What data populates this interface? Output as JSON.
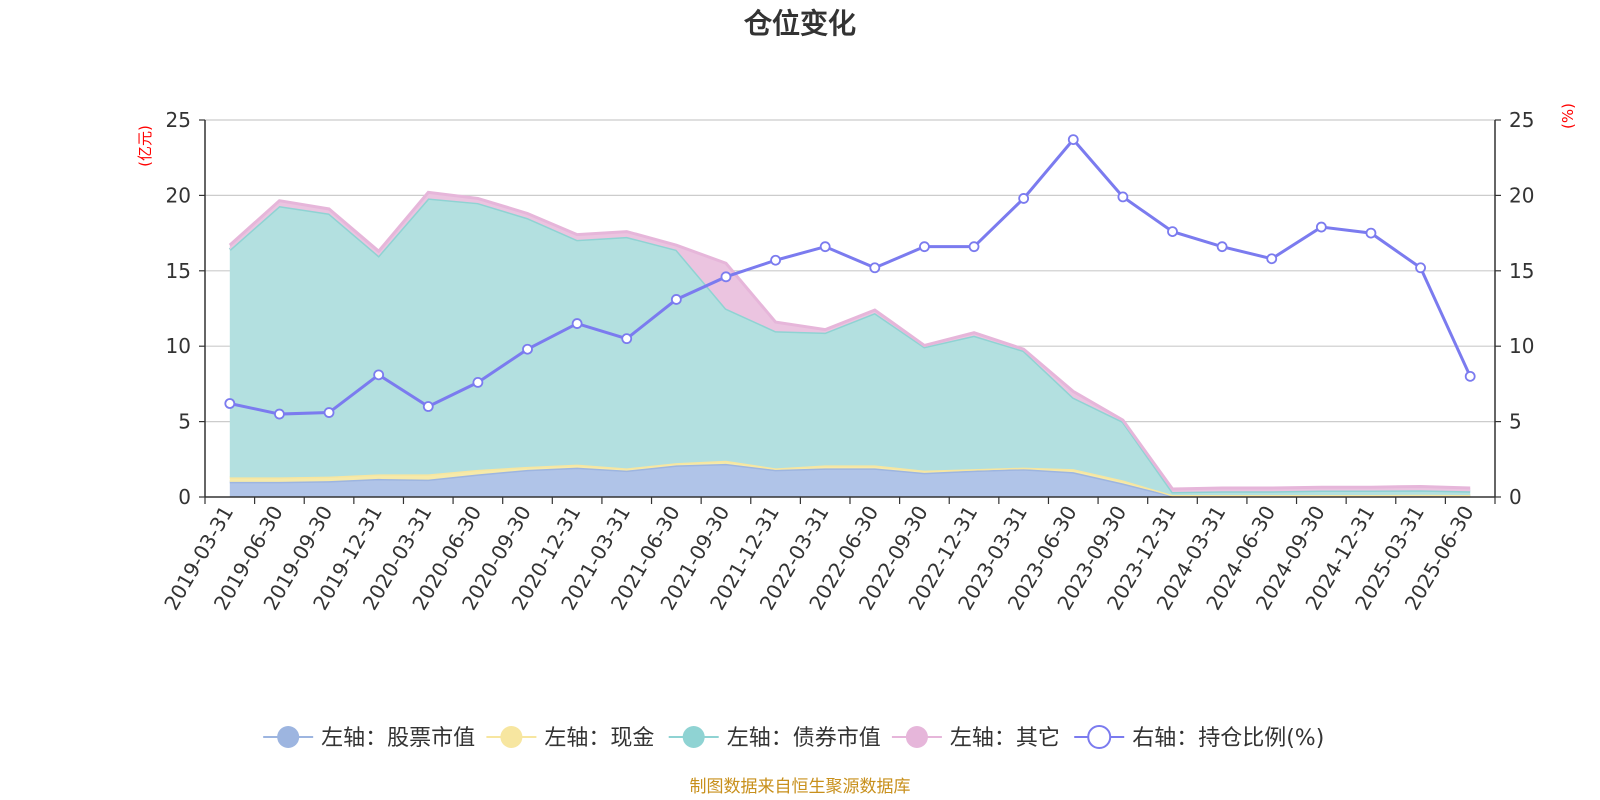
{
  "chart_data": {
    "type": "area",
    "title": "仓位变化",
    "left_axis_unit": "(亿元)",
    "right_axis_unit": "(%)",
    "ylim_left": [
      0,
      25
    ],
    "ylim_right": [
      0,
      25
    ],
    "yticks_left": [
      "0",
      "5",
      "10",
      "15",
      "20",
      "25"
    ],
    "yticks_right": [
      "0",
      "5",
      "10",
      "15",
      "20",
      "25"
    ],
    "grid": true,
    "legend_position": "bottom",
    "categories": [
      "2019-03-31",
      "2019-06-30",
      "2019-09-30",
      "2019-12-31",
      "2020-03-31",
      "2020-06-30",
      "2020-09-30",
      "2020-12-31",
      "2021-03-31",
      "2021-06-30",
      "2021-09-30",
      "2021-12-31",
      "2022-03-31",
      "2022-06-30",
      "2022-09-30",
      "2022-12-31",
      "2023-03-31",
      "2023-06-30",
      "2023-09-30",
      "2023-12-31",
      "2024-03-31",
      "2024-06-30",
      "2024-09-30",
      "2024-12-31",
      "2025-03-31",
      "2025-06-30"
    ],
    "stacked_series": [
      {
        "name": "左轴：股票市值",
        "color": "#9db5e0",
        "fill": "#b0c4e8",
        "values": [
          1.0,
          1.0,
          1.05,
          1.2,
          1.15,
          1.5,
          1.8,
          1.95,
          1.75,
          2.1,
          2.2,
          1.8,
          1.9,
          1.9,
          1.6,
          1.75,
          1.85,
          1.65,
          0.9,
          0.08,
          0.08,
          0.08,
          0.08,
          0.08,
          0.1,
          0.08
        ]
      },
      {
        "name": "左轴：现金",
        "color": "#f7e6a0",
        "fill": "#f6eaaa",
        "values": [
          0.3,
          0.3,
          0.3,
          0.3,
          0.35,
          0.3,
          0.2,
          0.2,
          0.15,
          0.15,
          0.2,
          0.1,
          0.2,
          0.2,
          0.15,
          0.1,
          0.1,
          0.2,
          0.2,
          0.05,
          0.05,
          0.05,
          0.05,
          0.05,
          0.05,
          0.05
        ]
      },
      {
        "name": "左轴：债券市值",
        "color": "#8fd3d3",
        "fill": "#b3e0e0",
        "values": [
          15.1,
          18.0,
          17.45,
          14.5,
          18.3,
          17.7,
          16.5,
          14.9,
          15.35,
          14.15,
          10.1,
          9.1,
          8.8,
          10.1,
          8.2,
          8.85,
          7.75,
          4.75,
          3.9,
          0.2,
          0.25,
          0.25,
          0.3,
          0.3,
          0.3,
          0.25
        ]
      },
      {
        "name": "左轴：其它",
        "color": "#e6b6da",
        "fill": "#ebc4e0",
        "values": [
          0.3,
          0.35,
          0.3,
          0.3,
          0.4,
          0.3,
          0.3,
          0.35,
          0.35,
          0.3,
          3.0,
          0.6,
          0.2,
          0.2,
          0.1,
          0.2,
          0.1,
          0.4,
          0.1,
          0.2,
          0.22,
          0.22,
          0.22,
          0.22,
          0.25,
          0.22
        ]
      }
    ],
    "line_series": {
      "name": "右轴：持仓比例(%)",
      "color": "#7b7bef",
      "values": [
        6.2,
        5.5,
        5.6,
        8.1,
        6.0,
        7.6,
        9.8,
        11.5,
        10.5,
        13.1,
        14.6,
        15.7,
        16.6,
        15.2,
        16.6,
        16.6,
        19.8,
        23.7,
        19.9,
        17.6,
        16.6,
        15.8,
        17.9,
        17.5,
        15.2,
        8.0
      ]
    },
    "source_note": "制图数据来自恒生聚源数据库"
  }
}
